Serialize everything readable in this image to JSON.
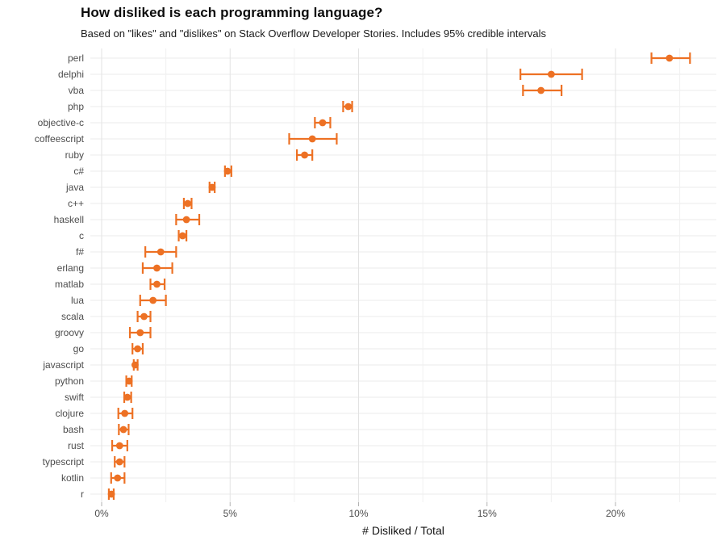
{
  "chart": {
    "title": "How disliked is each programming language?",
    "subtitle": "Based on \"likes\" and \"dislikes\" on Stack Overflow Developer Stories. Includes 95% credible intervals",
    "xlabel": "# Disliked / Total"
  },
  "chart_data": {
    "type": "scatter",
    "subtype": "horizontal-dot-plot-with-95pct-credible-interval-error-bars",
    "title": "How disliked is each programming language?",
    "subtitle": "Based on \"likes\" and \"dislikes\" on Stack Overflow Developer Stories. Includes 95% credible intervals",
    "xlabel": "# Disliked / Total",
    "ylabel": "",
    "legend_position": "none",
    "grid": "on",
    "x_axis": {
      "unit": "percent",
      "tick_labels": [
        "0%",
        "5%",
        "10%",
        "15%",
        "20%"
      ],
      "tick_values": [
        0,
        5,
        10,
        15,
        20
      ],
      "minor_gridlines": [
        2.5,
        7.5,
        12.5,
        17.5,
        22.5
      ],
      "range": [
        -0.45,
        23.9
      ]
    },
    "series": [
      {
        "label": "perl",
        "value": 22.1,
        "ci_low": 21.4,
        "ci_high": 22.9
      },
      {
        "label": "delphi",
        "value": 17.5,
        "ci_low": 16.3,
        "ci_high": 18.7
      },
      {
        "label": "vba",
        "value": 17.1,
        "ci_low": 16.4,
        "ci_high": 17.9
      },
      {
        "label": "php",
        "value": 9.6,
        "ci_low": 9.4,
        "ci_high": 9.75
      },
      {
        "label": "objective-c",
        "value": 8.6,
        "ci_low": 8.3,
        "ci_high": 8.9
      },
      {
        "label": "coffeescript",
        "value": 8.2,
        "ci_low": 7.3,
        "ci_high": 9.15
      },
      {
        "label": "ruby",
        "value": 7.9,
        "ci_low": 7.6,
        "ci_high": 8.2
      },
      {
        "label": "c#",
        "value": 4.9,
        "ci_low": 4.8,
        "ci_high": 5.05
      },
      {
        "label": "java",
        "value": 4.3,
        "ci_low": 4.2,
        "ci_high": 4.4
      },
      {
        "label": "c++",
        "value": 3.35,
        "ci_low": 3.2,
        "ci_high": 3.5
      },
      {
        "label": "haskell",
        "value": 3.3,
        "ci_low": 2.9,
        "ci_high": 3.8
      },
      {
        "label": "c",
        "value": 3.15,
        "ci_low": 3.0,
        "ci_high": 3.3
      },
      {
        "label": "f#",
        "value": 2.3,
        "ci_low": 1.7,
        "ci_high": 2.9
      },
      {
        "label": "erlang",
        "value": 2.15,
        "ci_low": 1.6,
        "ci_high": 2.75
      },
      {
        "label": "matlab",
        "value": 2.15,
        "ci_low": 1.9,
        "ci_high": 2.45
      },
      {
        "label": "lua",
        "value": 2.0,
        "ci_low": 1.5,
        "ci_high": 2.5
      },
      {
        "label": "scala",
        "value": 1.65,
        "ci_low": 1.4,
        "ci_high": 1.9
      },
      {
        "label": "groovy",
        "value": 1.5,
        "ci_low": 1.1,
        "ci_high": 1.9
      },
      {
        "label": "go",
        "value": 1.4,
        "ci_low": 1.2,
        "ci_high": 1.6
      },
      {
        "label": "javascript",
        "value": 1.3,
        "ci_low": 1.25,
        "ci_high": 1.4
      },
      {
        "label": "python",
        "value": 1.07,
        "ci_low": 0.96,
        "ci_high": 1.17
      },
      {
        "label": "swift",
        "value": 1.0,
        "ci_low": 0.88,
        "ci_high": 1.15
      },
      {
        "label": "clojure",
        "value": 0.9,
        "ci_low": 0.65,
        "ci_high": 1.2
      },
      {
        "label": "bash",
        "value": 0.85,
        "ci_low": 0.67,
        "ci_high": 1.05
      },
      {
        "label": "rust",
        "value": 0.7,
        "ci_low": 0.41,
        "ci_high": 1.0
      },
      {
        "label": "typescript",
        "value": 0.7,
        "ci_low": 0.51,
        "ci_high": 0.89
      },
      {
        "label": "kotlin",
        "value": 0.62,
        "ci_low": 0.37,
        "ci_high": 0.89
      },
      {
        "label": "r",
        "value": 0.38,
        "ci_low": 0.28,
        "ci_high": 0.47
      }
    ],
    "style": {
      "point_color": "#ED7124",
      "major_gridline_color": "#e3e3e3",
      "minor_gridline_color": "#f0f0f0",
      "row_gridline_color": "#ebebeb",
      "tick_mark_color": "#b3b3b3",
      "axis_text_color": "#4d4d4d",
      "background": "#ffffff"
    }
  }
}
